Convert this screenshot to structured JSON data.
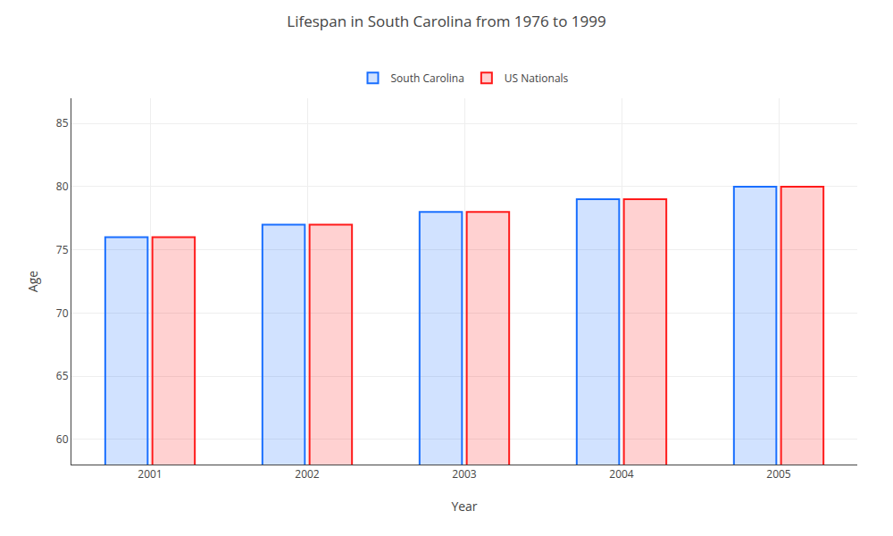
{
  "chart_data": {
    "type": "bar",
    "title": "Lifespan in South Carolina from 1976 to 1999",
    "categories": [
      "2001",
      "2002",
      "2003",
      "2004",
      "2005"
    ],
    "series": [
      {
        "name": "South Carolina",
        "color": "#1a6fff",
        "values": [
          76,
          77,
          78,
          79,
          80
        ]
      },
      {
        "name": "US Nationals",
        "color": "#ff1a1a",
        "values": [
          76,
          77,
          78,
          79,
          80
        ]
      }
    ],
    "xlabel": "Year",
    "ylabel": "Age",
    "ylim": [
      58,
      87
    ],
    "yticks": [
      60,
      65,
      70,
      75,
      80,
      85
    ],
    "grid": true,
    "legend": "top"
  }
}
